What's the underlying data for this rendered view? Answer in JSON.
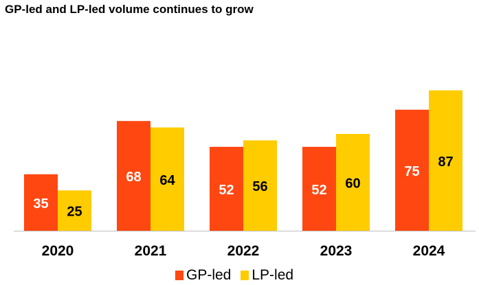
{
  "chart_data": {
    "type": "bar",
    "title": "GP-led and LP-led volume continues to grow",
    "xlabel": "",
    "ylabel": "",
    "categories": [
      "2020",
      "2021",
      "2022",
      "2023",
      "2024"
    ],
    "series": [
      {
        "name": "GP-led",
        "color": "#FF4712",
        "values": [
          35,
          68,
          52,
          52,
          75
        ]
      },
      {
        "name": "LP-led",
        "color": "#FFCC00",
        "values": [
          25,
          64,
          56,
          60,
          87
        ]
      }
    ],
    "ylim": [
      0,
      90
    ],
    "grid": false,
    "legend": "bottom"
  }
}
